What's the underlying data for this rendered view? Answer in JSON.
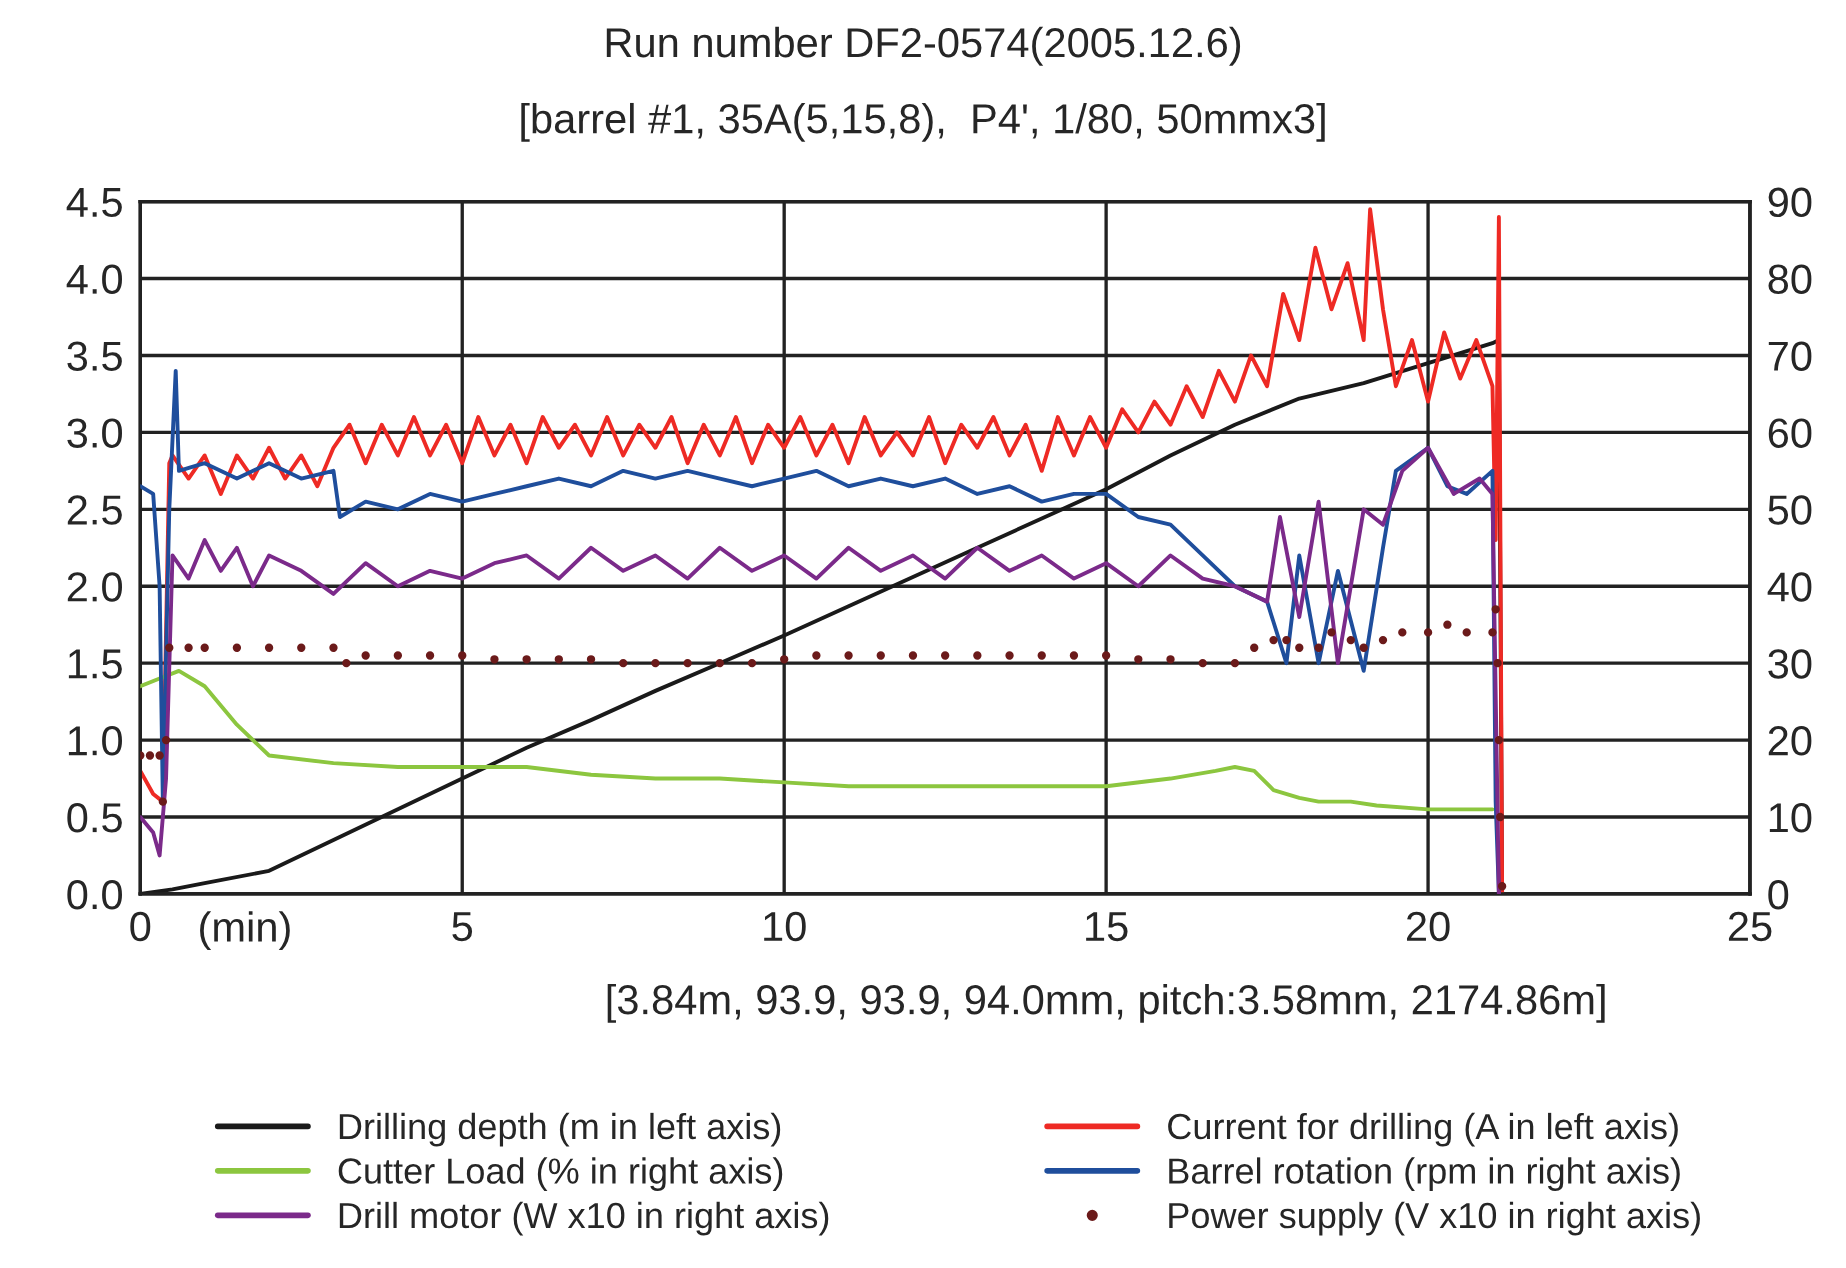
{
  "chart_data": {
    "type": "line",
    "title": "Run number DF2-0574(2005.12.6)",
    "subtitle": "[barrel #1, 35A(5,15,8),  P4', 1/80, 50mmx3]",
    "xlabel": "(min)",
    "annotations": [
      "[3.84m, 93.9, 93.9, 94.0mm, pitch:3.58mm, 2174.86m]"
    ],
    "xlim": [
      0,
      25
    ],
    "xticks": [
      0,
      5,
      10,
      15,
      20,
      25
    ],
    "ylim": [
      0.0,
      4.5
    ],
    "yticks": [
      {
        "value": 0,
        "label": "0.0"
      },
      0.5,
      {
        "value": 1,
        "label": "1.0"
      },
      1.5,
      {
        "value": 2,
        "label": "2.0"
      },
      2.5,
      {
        "value": 3,
        "label": "3.0"
      },
      3.5,
      {
        "value": 4,
        "label": "4.0"
      },
      4.5
    ],
    "y2lim": [
      0,
      90
    ],
    "y2ticks": [
      0,
      10,
      20,
      30,
      40,
      50,
      60,
      70,
      80,
      90
    ],
    "grid": true,
    "legend": "bottom",
    "series": [
      {
        "name": "Drilling depth (m in left axis)",
        "color": "#1a1a1a",
        "x": [
          0,
          0.5,
          1,
          2,
          3,
          4,
          5,
          6,
          7,
          8,
          9,
          10,
          11,
          12,
          13,
          14,
          15,
          16,
          17,
          18,
          19,
          20,
          21,
          21.1,
          21.15
        ],
        "values": [
          0,
          0.03,
          0.07,
          0.15,
          0.35,
          0.55,
          0.75,
          0.95,
          1.13,
          1.32,
          1.5,
          1.68,
          1.87,
          2.06,
          2.25,
          2.44,
          2.63,
          2.85,
          3.05,
          3.22,
          3.32,
          3.45,
          3.58,
          3.6,
          0
        ]
      },
      {
        "name": "Current for drilling (A in left axis)",
        "color": "#ee2a24",
        "x": [
          0,
          0.2,
          0.35,
          0.45,
          0.5,
          0.75,
          1,
          1.25,
          1.5,
          1.75,
          2,
          2.25,
          2.5,
          2.75,
          3,
          3.25,
          3.5,
          3.75,
          4,
          4.25,
          4.5,
          4.75,
          5,
          5.25,
          5.5,
          5.75,
          6,
          6.25,
          6.5,
          6.75,
          7,
          7.25,
          7.5,
          7.75,
          8,
          8.25,
          8.5,
          8.75,
          9,
          9.25,
          9.5,
          9.75,
          10,
          10.25,
          10.5,
          10.75,
          11,
          11.25,
          11.5,
          11.75,
          12,
          12.25,
          12.5,
          12.75,
          13,
          13.25,
          13.5,
          13.75,
          14,
          14.25,
          14.5,
          14.75,
          15,
          15.25,
          15.5,
          15.75,
          16,
          16.25,
          16.5,
          16.75,
          17,
          17.25,
          17.5,
          17.75,
          18,
          18.25,
          18.5,
          18.75,
          19,
          19.1,
          19.3,
          19.5,
          19.75,
          20,
          20.25,
          20.5,
          20.75,
          21,
          21.05,
          21.1,
          21.15
        ],
        "values": [
          0.8,
          0.65,
          0.6,
          2.8,
          2.85,
          2.7,
          2.85,
          2.6,
          2.85,
          2.7,
          2.9,
          2.7,
          2.85,
          2.65,
          2.9,
          3.05,
          2.8,
          3.05,
          2.85,
          3.1,
          2.85,
          3.05,
          2.8,
          3.1,
          2.85,
          3.05,
          2.8,
          3.1,
          2.9,
          3.05,
          2.85,
          3.1,
          2.85,
          3.05,
          2.9,
          3.1,
          2.8,
          3.05,
          2.85,
          3.1,
          2.8,
          3.05,
          2.9,
          3.1,
          2.85,
          3.05,
          2.8,
          3.1,
          2.85,
          3.0,
          2.85,
          3.1,
          2.8,
          3.05,
          2.9,
          3.1,
          2.85,
          3.05,
          2.75,
          3.1,
          2.85,
          3.1,
          2.9,
          3.15,
          3.0,
          3.2,
          3.05,
          3.3,
          3.1,
          3.4,
          3.2,
          3.5,
          3.3,
          3.9,
          3.6,
          4.2,
          3.8,
          4.1,
          3.6,
          4.45,
          3.8,
          3.3,
          3.6,
          3.2,
          3.65,
          3.35,
          3.6,
          3.3,
          2.3,
          4.4,
          0
        ]
      },
      {
        "name": "Cutter Load (% in right axis)",
        "color": "#8cc63f",
        "axis": "y2",
        "x": [
          0,
          0.3,
          0.6,
          1,
          1.5,
          2,
          3,
          4,
          5,
          6,
          7,
          8,
          9,
          10,
          11,
          12,
          13,
          14,
          15,
          16,
          16.7,
          17,
          17.3,
          17.6,
          18,
          18.3,
          18.8,
          19.2,
          20,
          21
        ],
        "values": [
          27,
          28,
          29,
          27,
          22,
          18,
          17,
          16.5,
          16.5,
          16.5,
          15.5,
          15,
          15,
          14.5,
          14,
          14,
          14,
          14,
          14,
          15,
          16,
          16.5,
          16,
          13.5,
          12.5,
          12,
          12,
          11.5,
          11,
          11
        ]
      },
      {
        "name": "Barrel rotation (rpm in right axis)",
        "color": "#1f4e9c",
        "axis": "y2",
        "x": [
          0,
          0.2,
          0.3,
          0.35,
          0.45,
          0.55,
          0.6,
          1,
          1.5,
          2,
          2.5,
          3,
          3.1,
          3.5,
          4,
          4.5,
          5,
          5.5,
          6,
          6.5,
          7,
          7.5,
          8,
          8.5,
          9,
          9.5,
          10,
          10.5,
          11,
          11.5,
          12,
          12.5,
          13,
          13.5,
          14,
          14.5,
          15,
          15.5,
          16,
          16.5,
          17,
          17.5,
          17.8,
          18,
          18.3,
          18.6,
          19,
          19.3,
          19.5,
          20,
          20.3,
          20.6,
          21,
          21.05,
          21.1
        ],
        "values": [
          53,
          52,
          40,
          12,
          50,
          68,
          55,
          56,
          54,
          56,
          54,
          55,
          49,
          51,
          50,
          52,
          51,
          52,
          53,
          54,
          53,
          55,
          54,
          55,
          54,
          53,
          54,
          55,
          53,
          54,
          53,
          54,
          52,
          53,
          51,
          52,
          52,
          49,
          48,
          44,
          40,
          38,
          30,
          44,
          30,
          42,
          29,
          45,
          55,
          58,
          53,
          52,
          55,
          12,
          0
        ]
      },
      {
        "name": "Drill motor (W x10 in right axis)",
        "color": "#7b2a8a",
        "axis": "y2",
        "x": [
          0,
          0.2,
          0.3,
          0.4,
          0.5,
          0.75,
          1,
          1.25,
          1.5,
          1.75,
          2,
          2.5,
          3,
          3.5,
          4,
          4.5,
          5,
          5.5,
          6,
          6.5,
          7,
          7.5,
          8,
          8.5,
          9,
          9.5,
          10,
          10.5,
          11,
          11.5,
          12,
          12.5,
          13,
          13.5,
          14,
          14.5,
          15,
          15.5,
          16,
          16.5,
          17,
          17.5,
          17.7,
          18,
          18.3,
          18.6,
          19,
          19.3,
          19.6,
          20,
          20.4,
          20.8,
          21,
          21.1
        ],
        "values": [
          10,
          8,
          5,
          15,
          44,
          41,
          46,
          42,
          45,
          40,
          44,
          42,
          39,
          43,
          40,
          42,
          41,
          43,
          44,
          41,
          45,
          42,
          44,
          41,
          45,
          42,
          44,
          41,
          45,
          42,
          44,
          41,
          45,
          42,
          44,
          41,
          43,
          40,
          44,
          41,
          40,
          38,
          49,
          36,
          51,
          30,
          50,
          48,
          55,
          58,
          52,
          54,
          52,
          0
        ]
      },
      {
        "name": "Power supply (V x10 in right axis)",
        "color": "#6b1a1a",
        "axis": "y2",
        "type": "scatter",
        "x": [
          0,
          0.15,
          0.3,
          0.35,
          0.4,
          0.45,
          0.75,
          1,
          1.5,
          2,
          2.5,
          3,
          3.2,
          3.5,
          4,
          4.5,
          5,
          5.5,
          6,
          6.5,
          7,
          7.5,
          8,
          8.5,
          9,
          9.5,
          10,
          10.5,
          11,
          11.5,
          12,
          12.5,
          13,
          13.5,
          14,
          14.5,
          15,
          15.5,
          16,
          16.5,
          17,
          17.3,
          17.6,
          17.8,
          18,
          18.3,
          18.5,
          18.8,
          19,
          19.3,
          19.6,
          20,
          20.3,
          20.6,
          21,
          21.05,
          21.08,
          21.1,
          21.12,
          21.15
        ],
        "values": [
          18,
          18,
          18,
          12,
          20,
          32,
          32,
          32,
          32,
          32,
          32,
          32,
          30,
          31,
          31,
          31,
          31,
          30.5,
          30.5,
          30.5,
          30.5,
          30,
          30,
          30,
          30,
          30,
          30.5,
          31,
          31,
          31,
          31,
          31,
          31,
          31,
          31,
          31,
          31,
          30.5,
          30.5,
          30,
          30,
          32,
          33,
          33,
          32,
          32,
          34,
          33,
          32,
          33,
          34,
          34,
          35,
          34,
          34,
          37,
          30,
          20,
          10,
          1
        ]
      }
    ]
  }
}
